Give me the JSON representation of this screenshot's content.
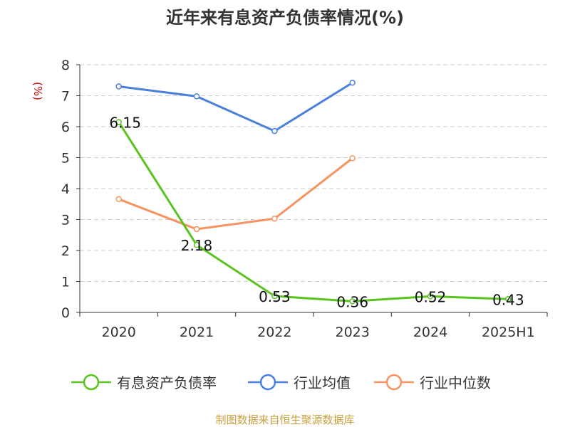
{
  "chart_data": {
    "type": "line",
    "title": "近年来有息资产负债率情况(%)",
    "ylabel": "(%)",
    "xlabel": "",
    "categories": [
      "2020",
      "2021",
      "2022",
      "2023",
      "2024",
      "2025H1"
    ],
    "ylim": [
      0,
      8
    ],
    "yticks": [
      0,
      1,
      2,
      3,
      4,
      5,
      6,
      7,
      8
    ],
    "grid": true,
    "legend_position": "bottom",
    "series": [
      {
        "name": "有息资产负债率",
        "color": "#5ac31e",
        "values": [
          6.15,
          2.18,
          0.53,
          0.36,
          0.52,
          0.43
        ],
        "labels": [
          "6.15",
          "2.18",
          "0.53",
          "0.36",
          "0.52",
          "0.43"
        ]
      },
      {
        "name": "行业均值",
        "color": "#4a7fdc",
        "values": [
          7.3,
          6.98,
          5.86,
          7.42,
          null,
          null
        ]
      },
      {
        "name": "行业中位数",
        "color": "#f59461",
        "values": [
          3.66,
          2.69,
          3.03,
          4.98,
          null,
          null
        ]
      }
    ],
    "source": "制图数据来自恒生聚源数据库",
    "colors": {
      "title": "#333333",
      "ylabel": "#cc0000",
      "axis": "#333333",
      "grid": "#cccccc",
      "source": "#c8a040"
    }
  }
}
